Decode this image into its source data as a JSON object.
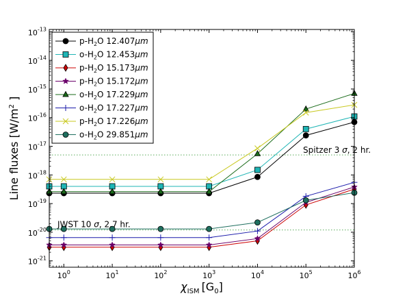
{
  "chart_data": {
    "type": "line",
    "xlabel_main": "χ",
    "xlabel_sub": "ISM",
    "xlabel_unit": "[G",
    "xlabel_unit_sub": "0",
    "xlabel_close": "]",
    "ylabel_main": "Line fluxes [W/m",
    "ylabel_sup": "2",
    "ylabel_close": " ]",
    "xscale": "log",
    "yscale": "log",
    "xlim": [
      0.5,
      1000000
    ],
    "ylim": [
      6e-22,
      1.2e-13
    ],
    "grid": false,
    "legend_position": "top-left",
    "x_ticks": [
      {
        "v": 1,
        "base": "10",
        "exp": "0"
      },
      {
        "v": 10,
        "base": "10",
        "exp": "1"
      },
      {
        "v": 100,
        "base": "10",
        "exp": "2"
      },
      {
        "v": 1000,
        "base": "10",
        "exp": "3"
      },
      {
        "v": 10000,
        "base": "10",
        "exp": "4"
      },
      {
        "v": 100000,
        "base": "10",
        "exp": "5"
      },
      {
        "v": 1000000,
        "base": "10",
        "exp": "6"
      }
    ],
    "y_ticks": [
      {
        "v": 1e-21,
        "base": "10",
        "exp": "-21"
      },
      {
        "v": 1e-20,
        "base": "10",
        "exp": "-20"
      },
      {
        "v": 1e-19,
        "base": "10",
        "exp": "-19"
      },
      {
        "v": 1e-18,
        "base": "10",
        "exp": "-18"
      },
      {
        "v": 1e-17,
        "base": "10",
        "exp": "-17"
      },
      {
        "v": 1e-16,
        "base": "10",
        "exp": "-16"
      },
      {
        "v": 1e-15,
        "base": "10",
        "exp": "-15"
      },
      {
        "v": 1e-14,
        "base": "10",
        "exp": "-14"
      },
      {
        "v": 1e-13,
        "base": "10",
        "exp": "-13"
      }
    ],
    "x": [
      0.5,
      1,
      10,
      100,
      1000,
      10000,
      100000,
      1000000
    ],
    "series": [
      {
        "prefix": "p-H",
        "sub": "2",
        "mid": "O 12.407",
        "unit": "μm",
        "color": "#000000",
        "marker": "circle",
        "values": [
          2.3e-19,
          2.3e-19,
          2.3e-19,
          2.3e-19,
          2.3e-19,
          8.5e-19,
          2.4e-17,
          7e-17
        ]
      },
      {
        "prefix": "o-H",
        "sub": "2",
        "mid": "O 12.453",
        "unit": "μm",
        "color": "#1fb5b5",
        "marker": "square",
        "values": [
          4e-19,
          4e-19,
          4e-19,
          4e-19,
          4e-19,
          1.5e-18,
          4e-17,
          1.1e-16
        ]
      },
      {
        "prefix": "p-H",
        "sub": "2",
        "mid": "O 15.173",
        "unit": "μm",
        "color": "#cc0000",
        "marker": "diamond",
        "values": [
          3e-21,
          3e-21,
          3e-21,
          3e-21,
          3e-21,
          5e-21,
          9e-20,
          3.2e-19
        ]
      },
      {
        "prefix": "p-H",
        "sub": "2",
        "mid": "O 15.172",
        "unit": "μm",
        "color": "#6a006a",
        "marker": "star",
        "values": [
          3.6e-21,
          3.6e-21,
          3.6e-21,
          3.6e-21,
          3.6e-21,
          6e-21,
          1.1e-19,
          3.8e-19
        ]
      },
      {
        "prefix": "o-H",
        "sub": "2",
        "mid": "O 17.229",
        "unit": "μm",
        "color": "#1a6b1a",
        "marker": "triangle",
        "values": [
          2.6e-19,
          2.6e-19,
          2.6e-19,
          2.6e-19,
          2.6e-19,
          5.5e-18,
          2e-16,
          7e-16
        ]
      },
      {
        "prefix": "o-H",
        "sub": "2",
        "mid": "O 17.227",
        "unit": "μm",
        "color": "#1a1aaa",
        "marker": "plus",
        "values": [
          6.5e-21,
          6.5e-21,
          6.5e-21,
          6.5e-21,
          6.5e-21,
          1.1e-20,
          1.8e-19,
          5.5e-19
        ]
      },
      {
        "prefix": "p-H",
        "sub": "2",
        "mid": "O 17.226",
        "unit": "μm",
        "color": "#c8c81e",
        "marker": "x",
        "values": [
          7e-19,
          7e-19,
          7e-19,
          7e-19,
          7e-19,
          8.5e-18,
          1.5e-16,
          2.8e-16
        ]
      },
      {
        "prefix": "o-H",
        "sub": "2",
        "mid": "O 29.851",
        "unit": "μm",
        "color": "#1f6f5f",
        "marker": "circle",
        "values": [
          1.3e-20,
          1.3e-20,
          1.3e-20,
          1.3e-20,
          1.3e-20,
          2.2e-20,
          1.3e-19,
          2.4e-19
        ]
      }
    ],
    "hlines": [
      {
        "y": 5e-18,
        "color": "#5aaa5a",
        "label_pre": "Spitzer 3 ",
        "label_sigma": "σ",
        "label_post": ", 2 hr."
      },
      {
        "y": 1.2e-20,
        "color": "#5aaa5a",
        "label_pre": "JWST 10 ",
        "label_sigma": "σ",
        "label_post": ", 2.7 hr."
      }
    ]
  }
}
